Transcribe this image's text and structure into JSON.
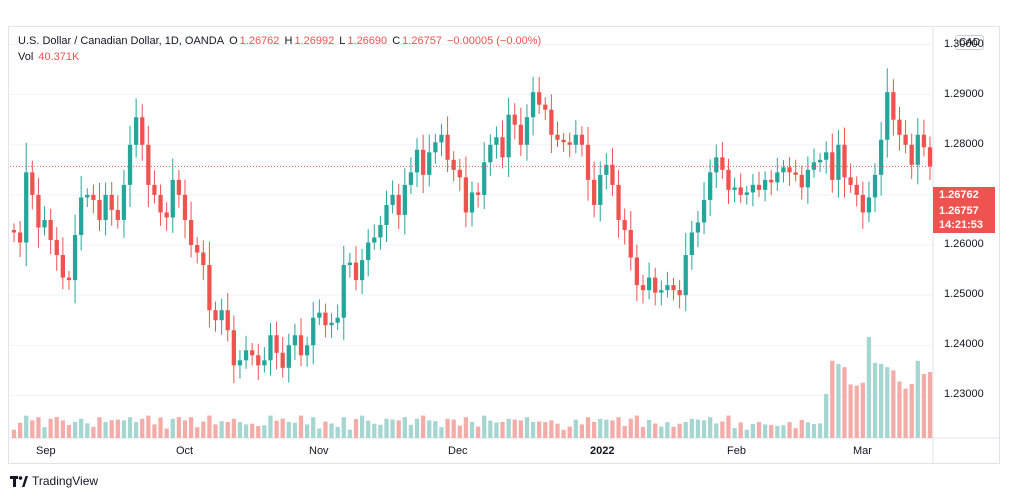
{
  "legend": {
    "symbol": "U.S. Dollar / Canadian Dollar, 1D, OANDA",
    "open_label": "O",
    "open": "1.26762",
    "high_label": "H",
    "high": "1.26992",
    "low_label": "L",
    "low": "1.26690",
    "close_label": "C",
    "close": "1.26757",
    "change": "−0.00005 (−0.00%)",
    "vol_label": "Vol",
    "vol": "40.371K"
  },
  "currency_button": "CAD",
  "price_tags": {
    "prev_close": "1.26762",
    "last": "1.26757",
    "countdown": "14:21:53"
  },
  "brand": "TradingView",
  "colors": {
    "up": "#26a69a",
    "down": "#ef5350",
    "vol_up": "#a5d6d2",
    "vol_down": "#f4aca9"
  },
  "chart_data": {
    "type": "candlestick",
    "y_ticks": [
      "1.30000",
      "1.29000",
      "1.28000",
      "1.27000",
      "1.26000",
      "1.25000",
      "1.24000",
      "1.23000"
    ],
    "ylim": [
      1.2215,
      1.3035
    ],
    "x_ticks": [
      "Sep",
      "Oct",
      "Nov",
      "Dec",
      "2022",
      "Feb",
      "Mar"
    ],
    "grid": true,
    "closes": [
      1.2625,
      1.2605,
      1.2745,
      1.27,
      1.2635,
      1.265,
      1.261,
      1.258,
      1.2535,
      1.253,
      1.262,
      1.2695,
      1.27,
      1.269,
      1.265,
      1.27,
      1.267,
      1.265,
      1.272,
      1.28,
      1.2855,
      1.28,
      1.272,
      1.27,
      1.2665,
      1.2655,
      1.273,
      1.27,
      1.265,
      1.26,
      1.2585,
      1.256,
      1.247,
      1.245,
      1.247,
      1.243,
      1.236,
      1.237,
      1.239,
      1.238,
      1.236,
      1.237,
      1.242,
      1.2385,
      1.2355,
      1.24,
      1.242,
      1.238,
      1.24,
      1.2455,
      1.2465,
      1.244,
      1.2445,
      1.2455,
      1.256,
      1.2565,
      1.253,
      1.257,
      1.2605,
      1.2615,
      1.264,
      1.268,
      1.27,
      1.266,
      1.272,
      1.2745,
      1.279,
      1.274,
      1.2785,
      1.2805,
      1.282,
      1.277,
      1.275,
      1.2735,
      1.2665,
      1.2705,
      1.27,
      1.2765,
      1.28,
      1.2815,
      1.2775,
      1.286,
      1.284,
      1.28,
      1.2855,
      1.2905,
      1.288,
      1.287,
      1.282,
      1.281,
      1.2805,
      1.28,
      1.282,
      1.28,
      1.273,
      1.268,
      1.274,
      1.276,
      1.272,
      1.265,
      1.263,
      1.2575,
      1.252,
      1.251,
      1.2535,
      1.2505,
      1.251,
      1.252,
      1.251,
      1.25,
      1.258,
      1.2625,
      1.2645,
      1.269,
      1.2745,
      1.2775,
      1.275,
      1.271,
      1.2715,
      1.27,
      1.2705,
      1.272,
      1.271,
      1.273,
      1.2725,
      1.2745,
      1.2755,
      1.2745,
      1.274,
      1.2715,
      1.275,
      1.2765,
      1.277,
      1.2785,
      1.273,
      1.28,
      1.2735,
      1.272,
      1.27,
      1.2665,
      1.2695,
      1.274,
      1.281,
      1.2905,
      1.285,
      1.282,
      1.28,
      1.276,
      1.282,
      1.2795,
      1.2757
    ],
    "volume_unit": "relative"
  }
}
